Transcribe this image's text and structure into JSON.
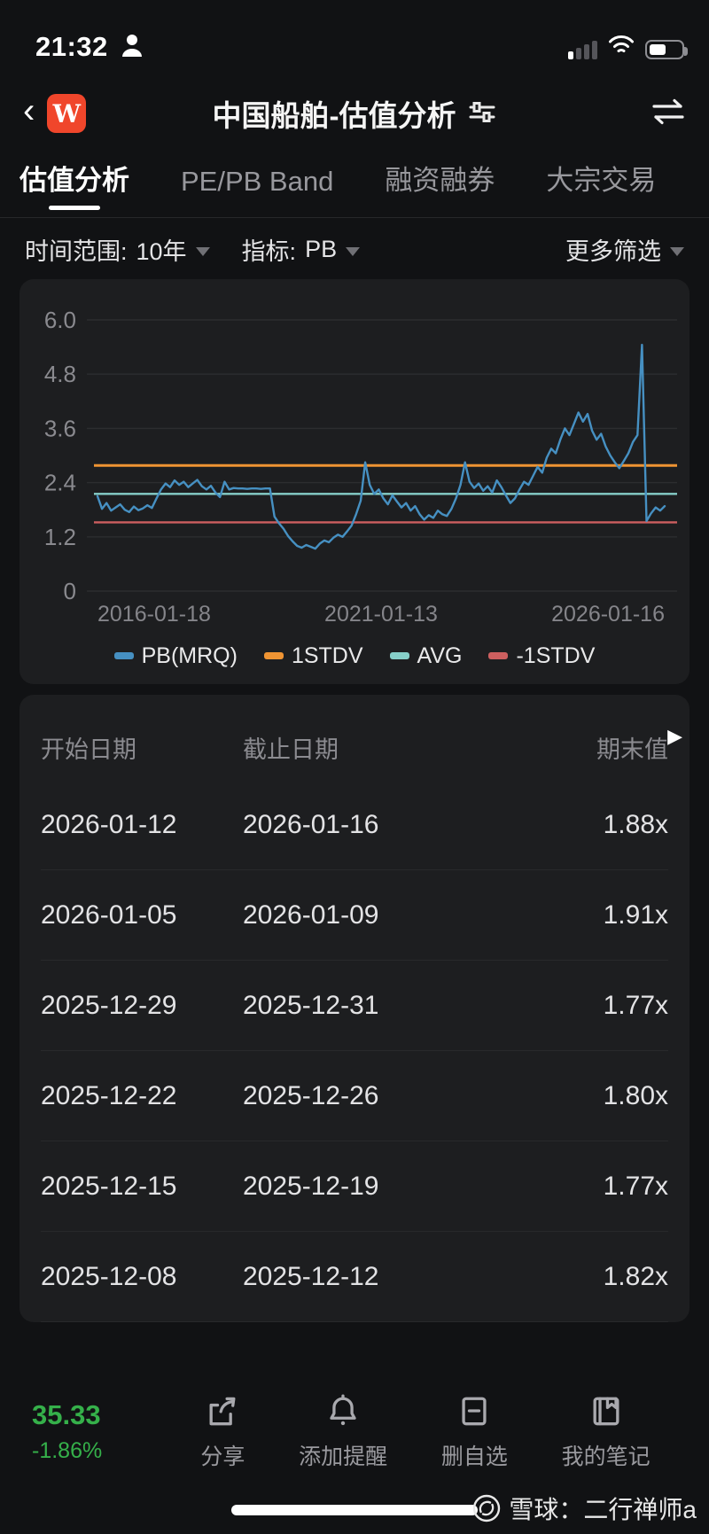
{
  "colors": {
    "accent_green": "#35b04a",
    "card_bg": "#1d1e20",
    "logo_red": "#f0462b",
    "pb_blue": "#4690c2",
    "stdv_orange": "#ef9433",
    "avg_teal": "#86cfc9",
    "neg_stdv_red": "#cd5f5f"
  },
  "status_bar": {
    "time": "21:32"
  },
  "header": {
    "back_glyph": "‹",
    "logo_letter": "W",
    "title": "中国船舶-估值分析"
  },
  "tabs": [
    {
      "label": "估值分析",
      "active": true
    },
    {
      "label": "PE/PB Band",
      "active": false
    },
    {
      "label": "融资融券",
      "active": false
    },
    {
      "label": "大宗交易",
      "active": false
    }
  ],
  "filters": {
    "time_range_label": "时间范围:",
    "time_range_value": "10年",
    "indicator_label": "指标:",
    "indicator_value": "PB",
    "more_label": "更多筛选"
  },
  "chart_data": {
    "type": "line",
    "ylim": [
      0,
      6
    ],
    "yticks": [
      0,
      1.2,
      2.4,
      3.6,
      4.8,
      6.0
    ],
    "ytick_labels": [
      "0",
      "1.2",
      "2.4",
      "3.6",
      "4.8",
      "6.0"
    ],
    "x_tick_labels": [
      "2016-01-18",
      "2021-01-13",
      "2026-01-16"
    ],
    "grid": true,
    "legend_position": "bottom-center",
    "series": [
      {
        "name": "PB(MRQ)",
        "color": "#4690c2",
        "type": "line",
        "values": [
          2.1,
          1.82,
          1.95,
          1.78,
          1.85,
          1.92,
          1.8,
          1.75,
          1.87,
          1.79,
          1.83,
          1.9,
          1.84,
          2.05,
          2.25,
          2.38,
          2.3,
          2.45,
          2.35,
          2.42,
          2.3,
          2.38,
          2.46,
          2.32,
          2.25,
          2.33,
          2.18,
          2.08,
          2.42,
          2.25,
          2.28,
          2.27,
          2.27,
          2.26,
          2.27,
          2.27,
          2.26,
          2.27,
          2.27,
          1.65,
          1.5,
          1.38,
          1.22,
          1.1,
          1.0,
          0.96,
          1.02,
          0.98,
          0.94,
          1.05,
          1.12,
          1.08,
          1.18,
          1.25,
          1.2,
          1.32,
          1.45,
          1.7,
          2.0,
          2.85,
          2.35,
          2.15,
          2.25,
          2.05,
          1.92,
          2.12,
          1.98,
          1.85,
          1.95,
          1.78,
          1.88,
          1.7,
          1.58,
          1.68,
          1.62,
          1.78,
          1.7,
          1.66,
          1.82,
          2.05,
          2.35,
          2.85,
          2.42,
          2.28,
          2.38,
          2.22,
          2.32,
          2.18,
          2.45,
          2.3,
          2.12,
          1.95,
          2.05,
          2.25,
          2.42,
          2.35,
          2.55,
          2.75,
          2.62,
          2.95,
          3.15,
          3.05,
          3.35,
          3.6,
          3.45,
          3.7,
          3.95,
          3.75,
          3.92,
          3.55,
          3.35,
          3.48,
          3.2,
          3.0,
          2.85,
          2.72,
          2.88,
          3.05,
          3.3,
          3.45,
          5.45,
          1.55,
          1.72,
          1.85,
          1.78,
          1.88
        ]
      },
      {
        "name": "1STDV",
        "color": "#ef9433",
        "type": "hline",
        "value": 2.78
      },
      {
        "name": "AVG",
        "color": "#86cfc9",
        "type": "hline",
        "value": 2.15
      },
      {
        "name": "-1STDV",
        "color": "#cd5f5f",
        "type": "hline",
        "value": 1.52
      }
    ]
  },
  "table": {
    "columns": [
      "开始日期",
      "截止日期",
      "期末值"
    ],
    "scroll_arrow": "▶",
    "rows": [
      [
        "2026-01-12",
        "2026-01-16",
        "1.88x"
      ],
      [
        "2026-01-05",
        "2026-01-09",
        "1.91x"
      ],
      [
        "2025-12-29",
        "2025-12-31",
        "1.77x"
      ],
      [
        "2025-12-22",
        "2025-12-26",
        "1.80x"
      ],
      [
        "2025-12-15",
        "2025-12-19",
        "1.77x"
      ],
      [
        "2025-12-08",
        "2025-12-12",
        "1.82x"
      ]
    ]
  },
  "toolbar": {
    "price": "35.33",
    "change": "-1.86%",
    "actions": [
      "分享",
      "添加提醒",
      "删自选",
      "我的笔记"
    ]
  },
  "footer": {
    "watermark": "雪球：二行禅师a"
  }
}
